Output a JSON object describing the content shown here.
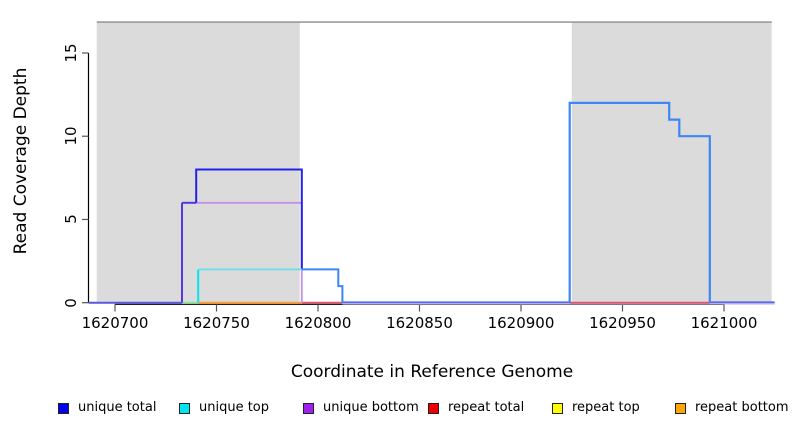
{
  "chart_data": {
    "type": "line",
    "title": "",
    "xlabel": "Coordinate in Reference Genome",
    "ylabel": "Read Coverage Depth",
    "xlim": [
      1620687,
      1621025
    ],
    "ylim": [
      0,
      17
    ],
    "x_ticks": [
      "1620700",
      "1620750",
      "1620800",
      "1620850",
      "1620900",
      "1620950",
      "1621000"
    ],
    "y_ticks": [
      "0",
      "5",
      "10",
      "15"
    ],
    "grid": false,
    "legend_position": "bottom",
    "background_color": "#FFFFFF",
    "shaded_region_color": "#DBDBDB",
    "shaded_regions": [
      {
        "from": 1620691,
        "to": 1620791
      },
      {
        "from": 1620925,
        "to": 1621023.5
      }
    ],
    "top_line": {
      "color": "#8C8C8C",
      "y_value": 16.86,
      "from": 1620691,
      "to": 1621023.5
    },
    "series": [
      {
        "name": "unique total",
        "color": "#0000EE",
        "steps": [
          [
            1620687,
            0
          ],
          [
            1620733,
            6
          ],
          [
            1620740,
            8
          ],
          [
            1620792,
            2
          ],
          [
            1620810,
            1
          ],
          [
            1620812,
            0
          ],
          [
            1620924,
            12
          ],
          [
            1620973,
            11
          ],
          [
            1620978,
            10
          ],
          [
            1620993,
            0
          ],
          [
            1621025,
            0
          ]
        ]
      },
      {
        "name": "unique top",
        "color": "#00E5EE",
        "steps": [
          [
            1620687,
            0
          ],
          [
            1620741,
            2
          ],
          [
            1620810,
            1
          ],
          [
            1620812,
            0
          ],
          [
            1620924,
            12
          ],
          [
            1620973,
            11
          ],
          [
            1620978,
            10
          ],
          [
            1620993,
            0
          ],
          [
            1621025,
            0
          ]
        ]
      },
      {
        "name": "unique bottom",
        "color": "#A020F0",
        "steps": [
          [
            1620687,
            0
          ],
          [
            1620733,
            6
          ],
          [
            1620792,
            0
          ],
          [
            1621025,
            0
          ]
        ]
      },
      {
        "name": "repeat total",
        "color": "#EE0000",
        "steps": [
          [
            1620687,
            0
          ],
          [
            1621025,
            0
          ]
        ]
      },
      {
        "name": "repeat top",
        "color": "#FFFF00",
        "steps": [
          [
            1620687,
            0
          ],
          [
            1621025,
            0
          ]
        ]
      },
      {
        "name": "repeat bottom",
        "color": "#FFA500",
        "steps": [
          [
            1620687,
            0
          ],
          [
            1621025,
            0
          ]
        ]
      }
    ],
    "visible_strokes": [
      {
        "name": "baseline-unique-blend",
        "color": "#5B57DE",
        "w": 2,
        "pts": [
          [
            1620687,
            0
          ],
          [
            1620733,
            0
          ]
        ]
      },
      {
        "name": "baseline-green-blend",
        "color": "#8FE39B",
        "w": 2,
        "pts": [
          [
            1620733,
            0
          ],
          [
            1620741,
            0
          ]
        ]
      },
      {
        "name": "baseline-orange",
        "color": "#FF9C33",
        "w": 2,
        "pts": [
          [
            1620741,
            0
          ],
          [
            1620792,
            0
          ]
        ]
      },
      {
        "name": "baseline-red-left",
        "color": "#E0556A",
        "w": 2,
        "pts": [
          [
            1620792,
            0
          ],
          [
            1620812,
            0
          ]
        ]
      },
      {
        "name": "baseline-lavender-right",
        "color": "#C9A4EC",
        "w": 2,
        "dy": 0.8,
        "pts": [
          [
            1620812,
            0
          ],
          [
            1621025,
            0
          ]
        ]
      },
      {
        "name": "baseline-blue-mid",
        "color": "#4A70F0",
        "w": 1.6,
        "dy": -0.5,
        "pts": [
          [
            1620812,
            0
          ],
          [
            1620924,
            0
          ]
        ]
      },
      {
        "name": "baseline-red-right",
        "color": "#E0556A",
        "w": 1.8,
        "pts": [
          [
            1620924,
            0
          ],
          [
            1620993,
            0
          ]
        ]
      },
      {
        "name": "baseline-blue-right",
        "color": "#4A70F0",
        "w": 1.6,
        "dy": -0.5,
        "pts": [
          [
            1620993,
            0
          ],
          [
            1621025,
            0
          ]
        ]
      },
      {
        "name": "unique-rise-indigo",
        "color": "#5736DD",
        "w": 2,
        "pts": [
          [
            1620733,
            0
          ],
          [
            1620733,
            6
          ]
        ]
      },
      {
        "name": "unique-six-indigo",
        "color": "#4A3BE0",
        "w": 2,
        "pts": [
          [
            1620733,
            6
          ],
          [
            1620740,
            6
          ]
        ]
      },
      {
        "name": "unique-bottom-lavender",
        "color": "#C490E8",
        "w": 1.8,
        "pts": [
          [
            1620740,
            6
          ],
          [
            1620792,
            6
          ],
          [
            1620792,
            0
          ]
        ]
      },
      {
        "name": "unique-total-blue",
        "color": "#2222EC",
        "w": 2,
        "pts": [
          [
            1620740,
            6
          ],
          [
            1620740,
            8
          ],
          [
            1620792,
            8
          ],
          [
            1620792,
            2
          ]
        ]
      },
      {
        "name": "unique-top-cyan-rise",
        "color": "#00E5EE",
        "w": 2,
        "pts": [
          [
            1620741,
            0
          ],
          [
            1620741,
            2
          ]
        ]
      },
      {
        "name": "unique-top-cyan",
        "color": "#66E0EE",
        "w": 1.8,
        "pts": [
          [
            1620741,
            2
          ],
          [
            1620792,
            2
          ]
        ]
      },
      {
        "name": "total-top-blend-step",
        "color": "#3E86F5",
        "w": 2,
        "pts": [
          [
            1620792,
            2
          ],
          [
            1620810,
            2
          ],
          [
            1620810,
            1
          ],
          [
            1620812,
            1
          ],
          [
            1620812,
            0
          ]
        ]
      },
      {
        "name": "right-hump-blend",
        "color": "#3E86F5",
        "w": 2.2,
        "pts": [
          [
            1620924,
            0
          ],
          [
            1620924,
            12
          ],
          [
            1620973,
            12
          ],
          [
            1620973,
            11
          ],
          [
            1620978,
            11
          ],
          [
            1620978,
            10
          ],
          [
            1620993,
            10
          ],
          [
            1620993,
            0
          ]
        ]
      }
    ]
  },
  "legend": {
    "items": [
      {
        "label": "unique total",
        "color": "#0000EE"
      },
      {
        "label": "unique top",
        "color": "#00E5EE"
      },
      {
        "label": "unique bottom",
        "color": "#A020F0"
      },
      {
        "label": "repeat total",
        "color": "#EE0000"
      },
      {
        "label": "repeat top",
        "color": "#FFFF00"
      },
      {
        "label": "repeat bottom",
        "color": "#FFA500"
      }
    ]
  }
}
